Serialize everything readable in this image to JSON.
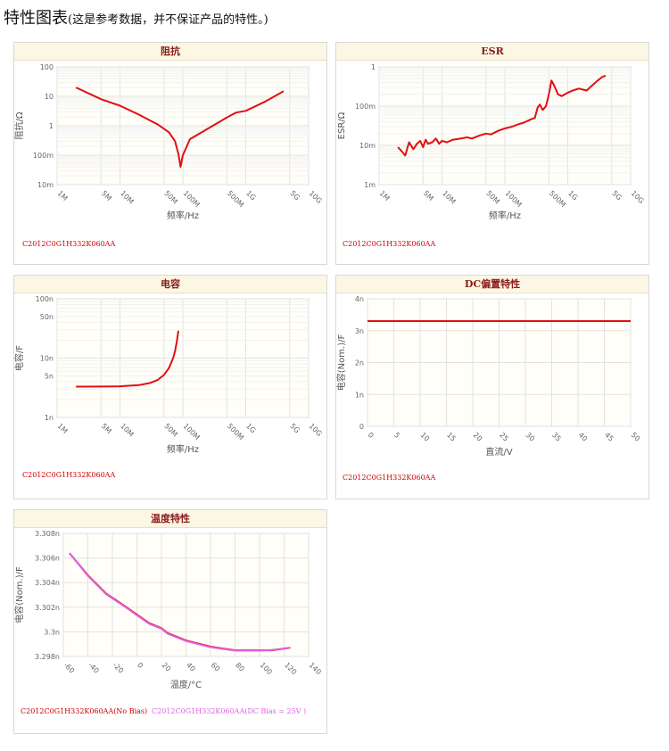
{
  "page": {
    "title": "特性图表",
    "subtitle": "(这是参考数据，并不保证产品的特性。)"
  },
  "colors": {
    "series_primary": "#e01010",
    "series_bias": "#e060e0",
    "panel_header_text": "#8b1a1a",
    "part_label": "#cc0000",
    "part_label_bias": "#e060e0"
  },
  "charts": {
    "impedance": {
      "title": "阻抗",
      "part": "C2012C0G1H332K060AA"
    },
    "esr": {
      "title": "ESR",
      "part": "C2012C0G1H332K060AA"
    },
    "capacitance": {
      "title": "电容",
      "part": "C2012C0G1H332K060AA"
    },
    "dcbias": {
      "title": "DC偏置特性",
      "part": "C2012C0G1H332K060AA"
    },
    "temp": {
      "title": "温度特性",
      "part_nobias": "C2012C0G1H332K060AA(No Bias)",
      "part_bias": "C2012C0G1H332K060AA(DC Bias = 25V )"
    }
  },
  "chart_data": [
    {
      "id": "impedance",
      "type": "line",
      "title": "阻抗",
      "xlabel": "频率/Hz",
      "ylabel": "阻抗/Ω",
      "xscale": "log",
      "yscale": "log",
      "xlim": [
        1000000,
        10000000000
      ],
      "ylim": [
        0.01,
        100
      ],
      "xticks": [
        "1M",
        "5M",
        "10M",
        "50M",
        "100M",
        "500M",
        "1G",
        "5G",
        "10G"
      ],
      "xtick_values": [
        1000000,
        5000000,
        10000000,
        50000000,
        100000000,
        500000000,
        1000000000,
        5000000000,
        10000000000
      ],
      "yticks": [
        "10m",
        "100m",
        "1",
        "10",
        "100"
      ],
      "ytick_values": [
        0.01,
        0.1,
        1,
        10,
        100
      ],
      "series": [
        {
          "color": "#e01010",
          "x": [
            2000000,
            5000000,
            10000000,
            20000000,
            40000000,
            60000000,
            75000000,
            85000000,
            92000000,
            100000000,
            130000000,
            200000000,
            300000000,
            500000000,
            700000000,
            1000000000,
            2000000000,
            4000000000
          ],
          "y": [
            20,
            8,
            4.8,
            2.4,
            1.1,
            0.6,
            0.3,
            0.11,
            0.04,
            0.1,
            0.35,
            0.6,
            1.0,
            1.9,
            2.8,
            3.2,
            6.5,
            15
          ]
        }
      ]
    },
    {
      "id": "esr",
      "type": "line",
      "title": "ESR",
      "xlabel": "频率/Hz",
      "ylabel": "ESR/Ω",
      "xscale": "log",
      "yscale": "log",
      "xlim": [
        1000000,
        10000000000
      ],
      "ylim": [
        0.001,
        1
      ],
      "xticks": [
        "1M",
        "5M",
        "10M",
        "50M",
        "100M",
        "500M",
        "1G",
        "5G",
        "10G"
      ],
      "xtick_values": [
        1000000,
        5000000,
        10000000,
        50000000,
        100000000,
        500000000,
        1000000000,
        5000000000,
        10000000000
      ],
      "yticks": [
        "1m",
        "10m",
        "100m",
        "1"
      ],
      "ytick_values": [
        0.001,
        0.01,
        0.1,
        1
      ],
      "series": [
        {
          "color": "#e01010",
          "x": [
            2000000,
            2300000,
            2600000,
            3000000,
            3500000,
            4000000,
            4500000,
            5000000,
            5500000,
            6000000,
            7000000,
            8000000,
            9000000,
            10000000,
            12000000,
            15000000,
            20000000,
            25000000,
            30000000,
            40000000,
            50000000,
            60000000,
            80000000,
            100000000,
            130000000,
            160000000,
            200000000,
            250000000,
            300000000,
            330000000,
            360000000,
            400000000,
            450000000,
            500000000,
            550000000,
            600000000,
            700000000,
            800000000,
            1000000000,
            1200000000,
            1500000000,
            2000000000,
            2500000000,
            3000000000,
            3500000000,
            4000000000
          ],
          "y": [
            0.009,
            0.007,
            0.0055,
            0.012,
            0.008,
            0.011,
            0.013,
            0.009,
            0.014,
            0.011,
            0.012,
            0.015,
            0.011,
            0.013,
            0.012,
            0.014,
            0.015,
            0.016,
            0.015,
            0.018,
            0.02,
            0.019,
            0.024,
            0.027,
            0.03,
            0.034,
            0.038,
            0.045,
            0.05,
            0.09,
            0.11,
            0.08,
            0.1,
            0.2,
            0.45,
            0.35,
            0.2,
            0.18,
            0.22,
            0.25,
            0.28,
            0.25,
            0.35,
            0.45,
            0.55,
            0.6
          ]
        }
      ]
    },
    {
      "id": "capacitance",
      "type": "line",
      "title": "电容",
      "xlabel": "频率/Hz",
      "ylabel": "电容/F",
      "xscale": "log",
      "yscale": "log",
      "xlim": [
        1000000,
        10000000000
      ],
      "ylim": [
        1e-09,
        1e-07
      ],
      "xticks": [
        "1M",
        "5M",
        "10M",
        "50M",
        "100M",
        "500M",
        "1G",
        "5G",
        "10G"
      ],
      "xtick_values": [
        1000000,
        5000000,
        10000000,
        50000000,
        100000000,
        500000000,
        1000000000,
        5000000000,
        10000000000
      ],
      "yticks": [
        "1n",
        "5n",
        "10n",
        "50n",
        "100n"
      ],
      "ytick_values": [
        1e-09,
        5e-09,
        1e-08,
        5e-08,
        1e-07
      ],
      "series": [
        {
          "color": "#e01010",
          "x": [
            2000000,
            5000000,
            10000000,
            20000000,
            30000000,
            40000000,
            50000000,
            60000000,
            70000000,
            75000000,
            80000000,
            85000000
          ],
          "y": [
            3.3e-09,
            3.31e-09,
            3.35e-09,
            3.5e-09,
            3.8e-09,
            4.3e-09,
            5.2e-09,
            6.8e-09,
            1e-08,
            1.3e-08,
            1.9e-08,
            2.9e-08
          ]
        }
      ]
    },
    {
      "id": "dcbias",
      "type": "line",
      "title": "DC偏置特性",
      "xlabel": "直流/V",
      "ylabel": "电容(Nom.)/F",
      "xlim": [
        0,
        50
      ],
      "ylim": [
        0,
        4e-09
      ],
      "xticks": [
        "0",
        "5",
        "10",
        "15",
        "20",
        "25",
        "30",
        "35",
        "40",
        "45",
        "50"
      ],
      "xtick_values": [
        0,
        5,
        10,
        15,
        20,
        25,
        30,
        35,
        40,
        45,
        50
      ],
      "yticks": [
        "0",
        "1n",
        "2n",
        "3n",
        "4n"
      ],
      "ytick_values": [
        0,
        1e-09,
        2e-09,
        3e-09,
        4e-09
      ],
      "series": [
        {
          "color": "#e01010",
          "x": [
            0,
            50
          ],
          "y": [
            3.3e-09,
            3.3e-09
          ]
        }
      ]
    },
    {
      "id": "temp",
      "type": "line",
      "title": "温度特性",
      "xlabel": "温度/°C",
      "ylabel": "电容(Nom.)/F",
      "xlim": [
        -60,
        140
      ],
      "ylim": [
        3.298e-09,
        3.308e-09
      ],
      "xticks": [
        "-60",
        "-40",
        "-20",
        "0",
        "20",
        "40",
        "60",
        "80",
        "100",
        "120",
        "140"
      ],
      "xtick_values": [
        -60,
        -40,
        -20,
        0,
        20,
        40,
        60,
        80,
        100,
        120,
        140
      ],
      "yticks": [
        "3.298n",
        "3.3n",
        "3.302n",
        "3.304n",
        "3.306n",
        "3.308n"
      ],
      "ytick_values": [
        3.298e-09,
        3.3e-09,
        3.302e-09,
        3.304e-09,
        3.306e-09,
        3.308e-09
      ],
      "series": [
        {
          "color": "#e01010",
          "x": [
            -55,
            -40,
            -25,
            -10,
            0,
            10,
            20,
            25,
            40,
            60,
            80,
            90,
            100,
            110,
            125
          ],
          "y": [
            3.3064e-09,
            3.3046e-09,
            3.3031e-09,
            3.3021e-09,
            3.3014e-09,
            3.3007e-09,
            3.3003e-09,
            3.2999e-09,
            3.2993e-09,
            3.2988e-09,
            3.2985e-09,
            3.2985e-09,
            3.2985e-09,
            3.2985e-09,
            3.2987e-09
          ]
        },
        {
          "color": "#e060e0",
          "x": [
            -55,
            -40,
            -25,
            -10,
            0,
            10,
            20,
            25,
            40,
            60,
            80,
            90,
            100,
            110,
            125
          ],
          "y": [
            3.3064e-09,
            3.30455e-09,
            3.30305e-09,
            3.30205e-09,
            3.30135e-09,
            3.30065e-09,
            3.30025e-09,
            3.29985e-09,
            3.29925e-09,
            3.29875e-09,
            3.29848e-09,
            3.29848e-09,
            3.29848e-09,
            3.29852e-09,
            3.29872e-09
          ]
        }
      ]
    }
  ]
}
